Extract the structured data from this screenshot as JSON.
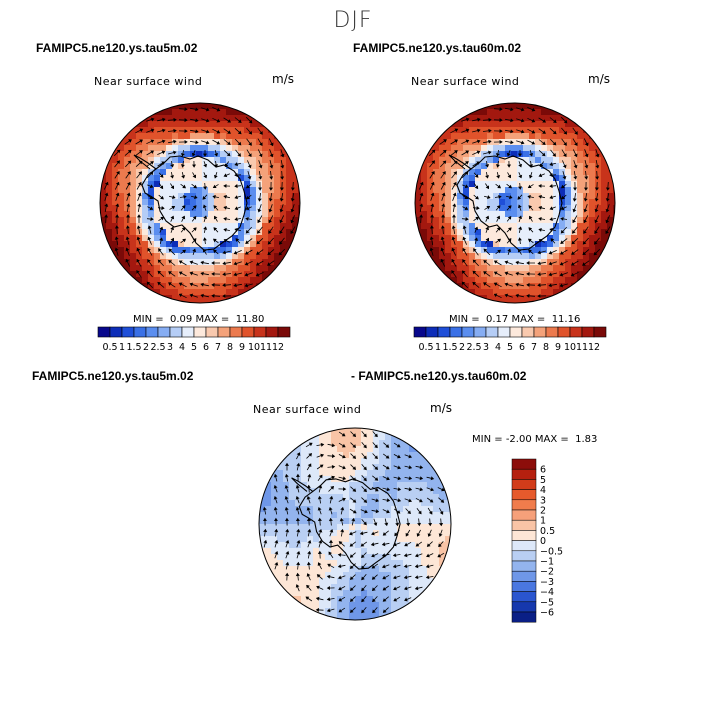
{
  "figure": {
    "title": "DJF"
  },
  "panels": [
    {
      "case": "FAMIPC5.ne120.ys.tau5m.02",
      "variable": "Near surface wind",
      "units": "m/s",
      "min_label": "MIN =",
      "min_value": "0.09",
      "max_label": "MAX =",
      "max_value": "11.80"
    },
    {
      "case": "FAMIPC5.ne120.ys.tau60m.02",
      "variable": "Near surface wind",
      "units": "m/s",
      "min_label": "MIN =",
      "min_value": "0.17",
      "max_label": "MAX =",
      "max_value": "11.16"
    },
    {
      "case_left": "FAMIPC5.ne120.ys.tau5m.02",
      "case_right": "- FAMIPC5.ne120.ys.tau60m.02",
      "variable": "Near surface wind",
      "units": "m/s",
      "min_label": "MIN =",
      "min_value": "-2.00",
      "max_label": "MAX =",
      "max_value": "1.83"
    }
  ],
  "chart_data": [
    {
      "type": "heatmap",
      "projection": "south-polar-stereographic",
      "field": "Near surface wind speed with wind vectors",
      "colorbar": {
        "orientation": "horizontal",
        "levels": [
          "0.5",
          "1",
          "1.5",
          "2",
          "2.5",
          "3",
          "4",
          "5",
          "6",
          "7",
          "8",
          "9",
          "10",
          "11",
          "12"
        ],
        "colors": [
          "#08088c",
          "#0d2db8",
          "#1f4fd8",
          "#3a70e6",
          "#5b8eef",
          "#86adf3",
          "#b5cdf6",
          "#e6eefb",
          "#fde9dc",
          "#f9c9ae",
          "#f4a27a",
          "#ec7a4e",
          "#e0532b",
          "#c8331b",
          "#a3180f",
          "#7a0a08"
        ]
      }
    },
    {
      "type": "heatmap",
      "projection": "south-polar-stereographic",
      "field": "Near surface wind speed with wind vectors",
      "colorbar": {
        "orientation": "horizontal",
        "levels": [
          "0.5",
          "1",
          "1.5",
          "2",
          "2.5",
          "3",
          "4",
          "5",
          "6",
          "7",
          "8",
          "9",
          "10",
          "11",
          "12"
        ],
        "colors": [
          "#08088c",
          "#0d2db8",
          "#1f4fd8",
          "#3a70e6",
          "#5b8eef",
          "#86adf3",
          "#b5cdf6",
          "#e6eefb",
          "#fde9dc",
          "#f9c9ae",
          "#f4a27a",
          "#ec7a4e",
          "#e0532b",
          "#c8331b",
          "#a3180f",
          "#7a0a08"
        ]
      }
    },
    {
      "type": "heatmap",
      "projection": "south-polar-stereographic",
      "field": "Near surface wind speed difference with wind vectors",
      "colorbar": {
        "orientation": "vertical",
        "levels": [
          "6",
          "5",
          "4",
          "3",
          "2",
          "1",
          "0.5",
          "0",
          "−0.5",
          "−1",
          "−2",
          "−3",
          "−4",
          "−5",
          "−6"
        ],
        "colors": [
          "#8c0d0a",
          "#b5200f",
          "#d23c1a",
          "#e65a2c",
          "#f07c4c",
          "#f6a07a",
          "#f9c4a6",
          "#fde6d6",
          "#dde8f9",
          "#b9cff3",
          "#93b4ee",
          "#6f97e8",
          "#4a77e0",
          "#2a55cf",
          "#1638ad",
          "#0a1f86"
        ]
      }
    }
  ]
}
